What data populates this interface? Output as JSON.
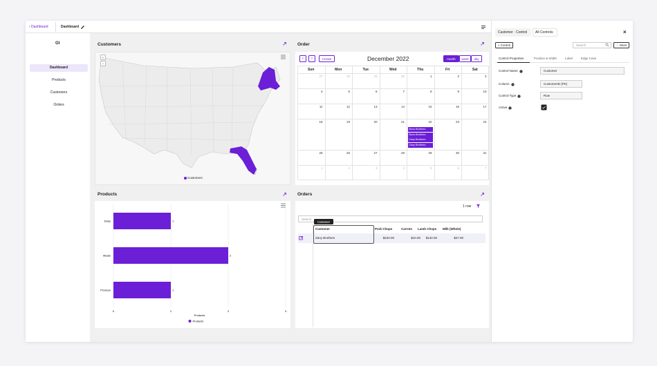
{
  "top_bar": {
    "back": "‹ Dashboard",
    "title": "Dashboard"
  },
  "sidebar": {
    "logo": "GI",
    "nav": [
      "Dashboard",
      "Products",
      "Customers",
      "Orders"
    ]
  },
  "customers_panel": {
    "title": "Customers",
    "zoom_in": "+",
    "zoom_out": "−",
    "legend": "Customers"
  },
  "order_panel": {
    "title": "Order",
    "prev": "‹",
    "next": "›",
    "create": "Create",
    "month": "December 2022",
    "views": [
      "month",
      "week",
      "day"
    ],
    "weekdays": [
      "Sun",
      "Mon",
      "Tue",
      "Wed",
      "Thu",
      "Fri",
      "Sat"
    ],
    "weeks": [
      [
        27,
        28,
        29,
        30,
        1,
        2,
        3
      ],
      [
        4,
        5,
        6,
        7,
        8,
        9,
        10
      ],
      [
        11,
        12,
        13,
        14,
        15,
        16,
        17
      ],
      [
        18,
        19,
        20,
        21,
        22,
        23,
        24
      ],
      [
        25,
        26,
        27,
        28,
        29,
        30,
        31
      ],
      [
        1,
        2,
        3,
        4,
        5,
        6,
        7
      ]
    ],
    "events": [
      "Bucs Brothers",
      "Bucs Brothers",
      "Zany Brothers",
      "Zany Brothers"
    ]
  },
  "products_panel": {
    "title": "Products",
    "chart": {
      "type": "bar",
      "orientation": "horizontal",
      "categories": [
        "Dairy",
        "Meats",
        "Produce"
      ],
      "values": [
        1,
        2,
        1
      ],
      "color": "#6b1fd6",
      "xlim": [
        0,
        3
      ],
      "xticks": [
        0,
        1,
        2,
        3
      ],
      "x_label": "Products",
      "legend": "Products"
    }
  },
  "orders_panel": {
    "title": "Orders",
    "row_count": "1 row",
    "search": "Search",
    "tooltip": "Customer",
    "columns": [
      "Customer",
      "Pork Chops",
      "Carrots",
      "Lamb Chops",
      "Milk (Whole)"
    ],
    "rows": [
      [
        "Zany Brothers",
        "$220.00",
        "$10.00",
        "$132.00",
        "$27.00"
      ]
    ]
  },
  "control_panel": {
    "tabs": [
      "Customer · Control",
      "All Controls"
    ],
    "close": "×",
    "add_control": "+ Control",
    "search": "Search",
    "more": "⋮ More",
    "sub_tabs": [
      "Control Properties",
      "Position & Width",
      "Label",
      "Edge Case"
    ],
    "fields": [
      {
        "label": "Control Name",
        "value": "Customer"
      },
      {
        "label": "Column",
        "value": "CustomerID (PK)"
      },
      {
        "label": "Control Type",
        "value": "Row"
      },
      {
        "label": "Active"
      }
    ]
  }
}
